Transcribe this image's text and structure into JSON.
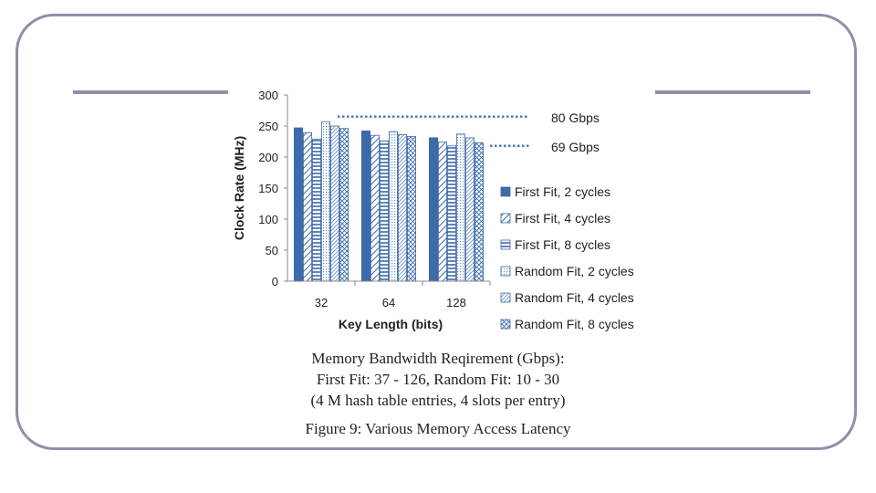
{
  "chart_data": {
    "type": "bar",
    "categories": [
      "32",
      "64",
      "128"
    ],
    "xlabel": "Key Length (bits)",
    "ylabel": "Clock Rate (MHz)",
    "ylim": [
      0,
      300
    ],
    "yticks": [
      0,
      50,
      100,
      150,
      200,
      250,
      300
    ],
    "series": [
      {
        "name": "First Fit, 2 cycles",
        "pattern": "solid",
        "values": [
          247,
          242,
          231
        ]
      },
      {
        "name": "First Fit, 4 cycles",
        "pattern": "diagonal",
        "values": [
          239,
          235,
          224
        ]
      },
      {
        "name": "First Fit, 8 cycles",
        "pattern": "horizontal",
        "values": [
          229,
          226,
          218
        ]
      },
      {
        "name": "Random Fit, 2 cycles",
        "pattern": "dots",
        "values": [
          257,
          241,
          237
        ]
      },
      {
        "name": "Random Fit, 4 cycles",
        "pattern": "diagonal-dense",
        "values": [
          250,
          236,
          231
        ]
      },
      {
        "name": "Random Fit, 8 cycles",
        "pattern": "crosshatch",
        "values": [
          246,
          233,
          223
        ]
      }
    ],
    "reference_lines": [
      {
        "label": "80 Gbps",
        "value": 265
      },
      {
        "label": "69 Gbps",
        "value": 218
      }
    ],
    "colors": {
      "bar": "#4f79b8",
      "bar_dark": "#3d6aa9",
      "reference": "#4f79b8"
    }
  },
  "caption": {
    "line1": "Memory Bandwidth Reqirement (Gbps):",
    "line2": "First Fit: 37 - 126, Random Fit: 10 - 30",
    "line3": "(4 M hash table entries, 4 slots per entry)",
    "figure": "Figure 9: Various Memory Access Latency"
  }
}
